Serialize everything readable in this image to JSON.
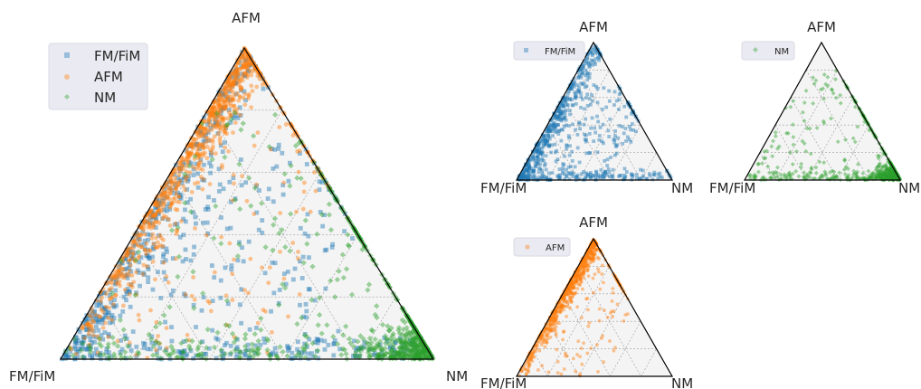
{
  "figure": {
    "description_note": "",
    "panels": [
      {
        "id": "main",
        "legend": [
          "FM/FiM",
          "AFM",
          "NM"
        ]
      },
      {
        "id": "fm",
        "legend": [
          "FM/FiM"
        ]
      },
      {
        "id": "nm",
        "legend": [
          "NM"
        ]
      },
      {
        "id": "afm",
        "legend": [
          "AFM"
        ]
      }
    ]
  },
  "colors": {
    "FM/FiM": "#1f77b4",
    "AFM": "#ff7f0e",
    "NM": "#2ca02c",
    "background": "#f4f4f4",
    "grid": "#9a9a9a",
    "edge": "#000000",
    "legend_bg": "#eaeaf2"
  },
  "chart_data": [
    {
      "type": "scatter",
      "subtype": "ternary",
      "title": "",
      "corner_labels": {
        "top": "AFM",
        "left": "FM/FiM",
        "right": "NM"
      },
      "grid_fractions": [
        0.2,
        0.4,
        0.6,
        0.8
      ],
      "legend_placement": "upper-left",
      "series": [
        {
          "name": "FM/FiM",
          "marker": "square",
          "description": "spread across the left half of the triangle, dense along the FM/FiM–AFM edge"
        },
        {
          "name": "AFM",
          "marker": "circle",
          "description": "concentrated along the FM/FiM–AFM edge, densest near the AFM corner"
        },
        {
          "name": "NM",
          "marker": "diamond",
          "description": "dense near the NM corner and along the FM/FiM–NM base"
        }
      ]
    },
    {
      "type": "scatter",
      "subtype": "ternary",
      "corner_labels": {
        "top": "AFM",
        "left": "FM/FiM",
        "right": "NM"
      },
      "series": [
        {
          "name": "FM/FiM",
          "marker": "square"
        }
      ]
    },
    {
      "type": "scatter",
      "subtype": "ternary",
      "corner_labels": {
        "top": "AFM",
        "left": "FM/FiM",
        "right": "NM"
      },
      "series": [
        {
          "name": "NM",
          "marker": "diamond"
        }
      ]
    },
    {
      "type": "scatter",
      "subtype": "ternary",
      "corner_labels": {
        "top": "AFM",
        "left": "FM/FiM",
        "right": "NM"
      },
      "series": [
        {
          "name": "AFM",
          "marker": "circle"
        }
      ]
    }
  ]
}
